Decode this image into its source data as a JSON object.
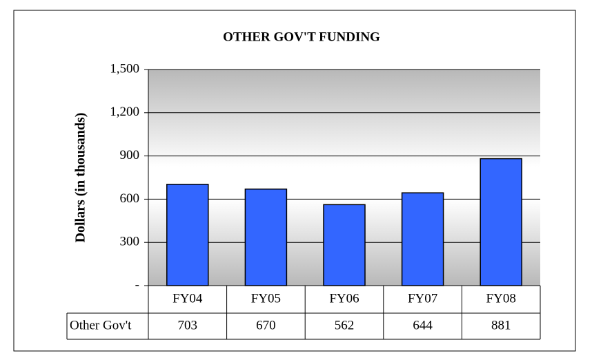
{
  "chart_data": {
    "type": "bar",
    "title": "OTHER GOV'T FUNDING",
    "y_label": "Dollars (in thousands)",
    "categories": [
      "FY04",
      "FY05",
      "FY06",
      "FY07",
      "FY08"
    ],
    "series": [
      {
        "name": "Other Gov't",
        "color": "#3366ff",
        "values": [
          703,
          670,
          562,
          644,
          881
        ]
      }
    ],
    "ylim": [
      0,
      1500
    ],
    "yticks": [
      {
        "value": 0,
        "label": "-"
      },
      300,
      600,
      900,
      {
        "value": 1200,
        "label": "1,200"
      },
      {
        "value": 1500,
        "label": "1,500"
      }
    ],
    "grid": true
  }
}
